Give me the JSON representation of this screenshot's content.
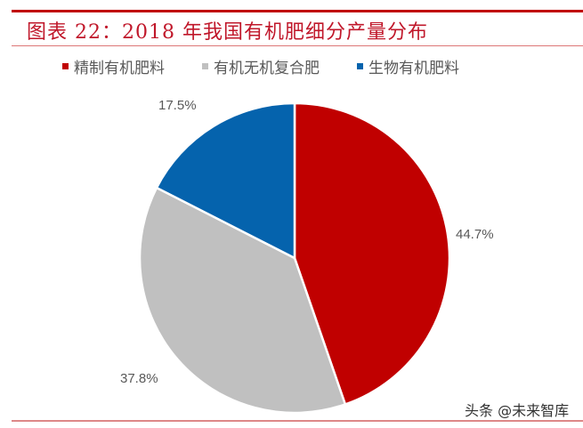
{
  "header": {
    "title": "图表 22：2018 年我国有机肥细分产量分布"
  },
  "legend": [
    {
      "label": "精制有机肥料",
      "color": "#c00000"
    },
    {
      "label": "有机无机复合肥",
      "color": "#c0c0c0"
    },
    {
      "label": "生物有机肥料",
      "color": "#0563ad"
    }
  ],
  "labels": {
    "a": "44.7%",
    "b": "37.8%",
    "c": "17.5%"
  },
  "watermark": "头条 @未来智库",
  "chart_data": {
    "type": "pie",
    "title": "图表 22：2018 年我国有机肥细分产量分布",
    "categories": [
      "精制有机肥料",
      "有机无机复合肥",
      "生物有机肥料"
    ],
    "values": [
      44.7,
      37.8,
      17.5
    ],
    "colors": [
      "#c00000",
      "#c0c0c0",
      "#0563ad"
    ],
    "legend_position": "top",
    "start_angle": "12 o'clock, clockwise"
  }
}
